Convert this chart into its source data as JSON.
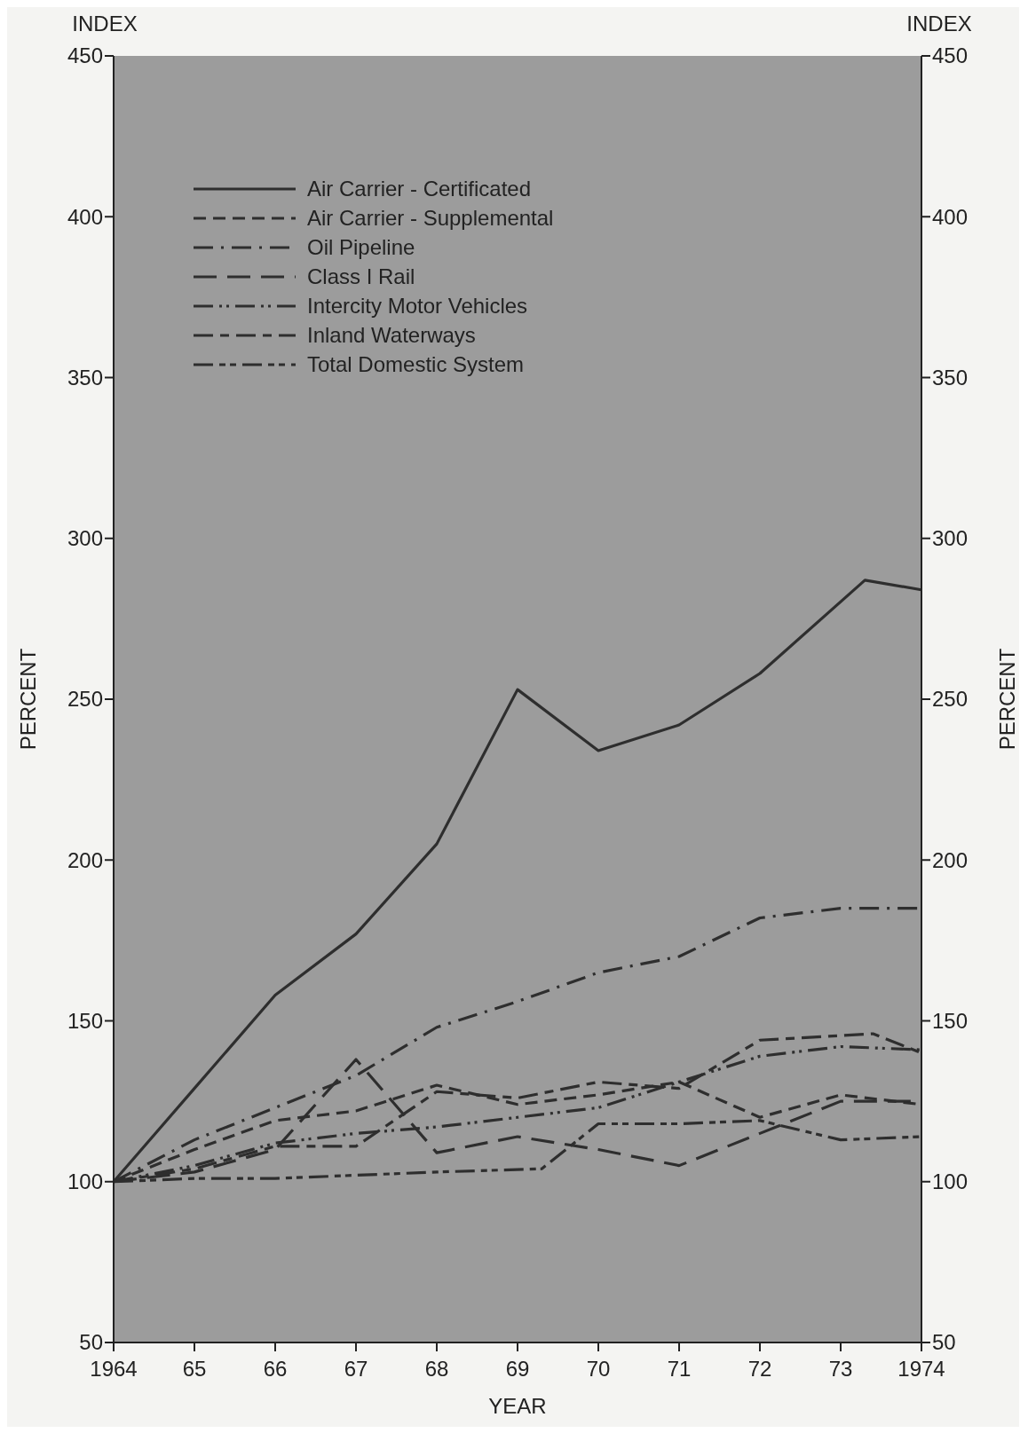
{
  "chart_data": {
    "type": "line",
    "xlabel": "YEAR",
    "ylabel": "PERCENT",
    "y2label": "PERCENT",
    "annotations": [
      "INDEX",
      "INDEX"
    ],
    "x": [
      1964,
      1965,
      1966,
      1967,
      1968,
      1969,
      1970,
      1971,
      1972,
      1973,
      1974
    ],
    "xlim": [
      1964,
      1974
    ],
    "xticks": [
      {
        "value": 1964,
        "label": "1964"
      },
      {
        "value": 1965,
        "label": "65"
      },
      {
        "value": 1966,
        "label": "66"
      },
      {
        "value": 1967,
        "label": "67"
      },
      {
        "value": 1968,
        "label": "68"
      },
      {
        "value": 1969,
        "label": "69"
      },
      {
        "value": 1970,
        "label": "70"
      },
      {
        "value": 1971,
        "label": "71"
      },
      {
        "value": 1972,
        "label": "72"
      },
      {
        "value": 1973,
        "label": "73"
      },
      {
        "value": 1974,
        "label": "1974"
      }
    ],
    "ylim": [
      50,
      450
    ],
    "yticks": [
      50,
      100,
      150,
      200,
      250,
      300,
      350,
      400,
      450
    ],
    "y2lim": [
      50,
      450
    ],
    "y2ticks": [
      50,
      100,
      150,
      200,
      250,
      300,
      350,
      400,
      450
    ],
    "grid": false,
    "legend": "top left",
    "series": [
      {
        "name": "Air Carrier - Certificated",
        "color": "#2e2e2e",
        "line_style": "solid",
        "x": [
          1964,
          1965,
          1966,
          1967,
          1968,
          1969,
          1970,
          1971,
          1972,
          1973.3,
          1974
        ],
        "values": [
          100,
          129,
          158,
          177,
          205,
          253,
          234,
          242,
          258,
          287,
          284
        ]
      },
      {
        "name": "Air Carrier - Supplemental",
        "color": "#2e2e2e",
        "line_style": "dashed",
        "values": [
          100,
          110,
          119,
          122,
          130,
          124,
          127,
          131,
          120,
          127,
          124
        ]
      },
      {
        "name": "Oil Pipeline",
        "color": "#2e2e2e",
        "line_style": "dashdot",
        "values": [
          100,
          113,
          123,
          133,
          148,
          156,
          165,
          170,
          182,
          185,
          185
        ]
      },
      {
        "name": "Class I Rail",
        "color": "#2e2e2e",
        "line_style": "longdash",
        "values": [
          100,
          103,
          110,
          138,
          109,
          114,
          110,
          105,
          115,
          125,
          125
        ]
      },
      {
        "name": "Intercity Motor Vehicles",
        "color": "#2e2e2e",
        "line_style": "dashdotdot",
        "values": [
          100,
          105,
          112,
          115,
          117,
          120,
          123,
          131,
          139,
          142,
          141
        ]
      },
      {
        "name": "Inland Waterways",
        "color": "#2e2e2e",
        "line_style": "longshort",
        "x": [
          1964,
          1965,
          1966,
          1967,
          1968,
          1969,
          1970,
          1971,
          1972,
          1973.4,
          1974
        ],
        "values": [
          100,
          104,
          111,
          111,
          128,
          126,
          131,
          129,
          144,
          146,
          140
        ]
      },
      {
        "name": "Total Domestic System",
        "color": "#2e2e2e",
        "line_style": "longshortshort",
        "x": [
          1964,
          1965,
          1966,
          1967,
          1968,
          1969.3,
          1970,
          1971,
          1972,
          1973,
          1974
        ],
        "values": [
          100,
          101,
          101,
          102,
          103,
          104,
          118,
          118,
          119,
          113,
          114
        ]
      }
    ]
  }
}
